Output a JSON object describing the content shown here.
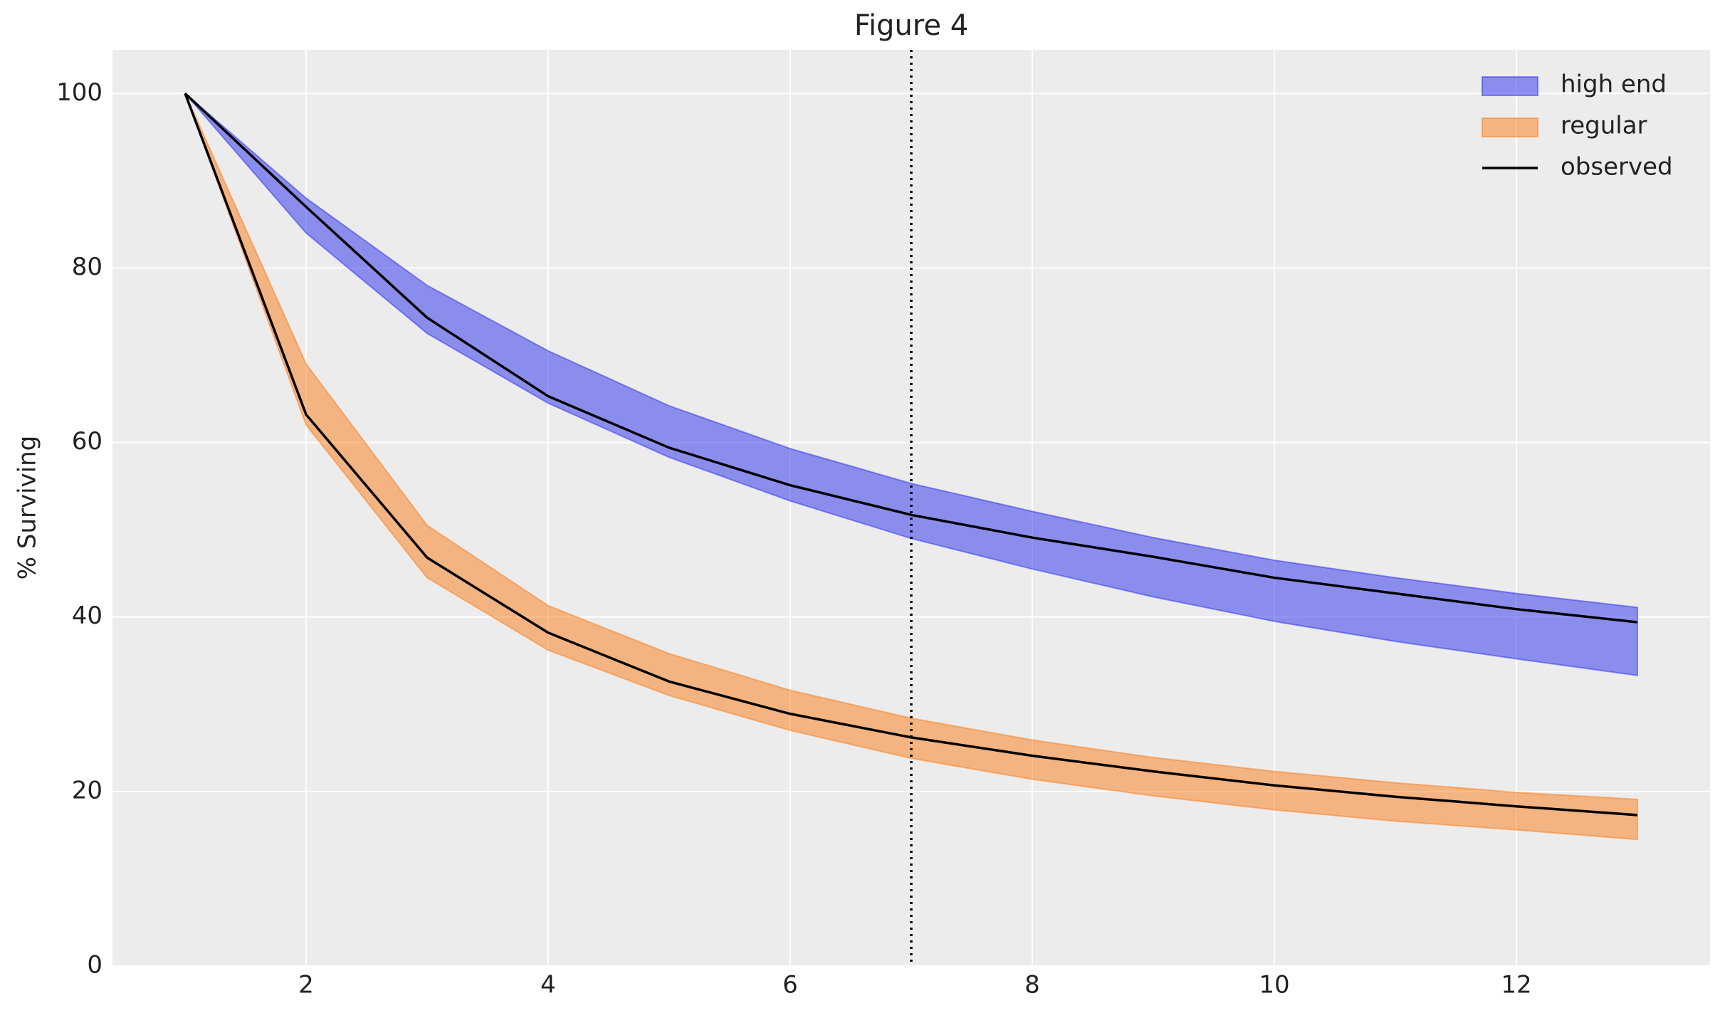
{
  "chart_data": {
    "type": "band",
    "title": "Figure 4",
    "y_label": "% Surviving",
    "x": [
      1,
      2,
      3,
      4,
      5,
      6,
      7,
      8,
      9,
      10,
      11,
      12,
      13
    ],
    "xlim": [
      0.4,
      13.6
    ],
    "ylim": [
      0,
      105
    ],
    "xticks": [
      2,
      4,
      6,
      8,
      10,
      12
    ],
    "yticks": [
      0,
      20,
      40,
      60,
      80,
      100
    ],
    "grid": true,
    "background": "#ececec",
    "alpha": 0.5,
    "vline": 7,
    "vline_color": "#000000",
    "legend": "upper right",
    "series": [
      {
        "name": "high end",
        "color": "#2a2eec",
        "upper": [
          100,
          88,
          78,
          70.5,
          64.2,
          59.3,
          55.3,
          52.1,
          49.1,
          46.5,
          44.5,
          42.7,
          41.1
        ],
        "lower": [
          100,
          84,
          72.5,
          64.5,
          58.3,
          53.3,
          49,
          45.5,
          42.3,
          39.5,
          37.2,
          35.2,
          33.3
        ],
        "observed": [
          100,
          87,
          74.3,
          65.3,
          59.4,
          55.1,
          51.7,
          49.1,
          46.9,
          44.5,
          42.7,
          40.9,
          39.4
        ]
      },
      {
        "name": "regular",
        "color": "#fa7c17",
        "upper": [
          100,
          69,
          50.5,
          41.3,
          35.8,
          31.6,
          28.4,
          25.9,
          23.9,
          22.3,
          21,
          19.9,
          19.1
        ],
        "lower": [
          100,
          62,
          44.5,
          36.2,
          31,
          27,
          23.8,
          21.4,
          19.5,
          17.9,
          16.6,
          15.6,
          14.5
        ],
        "observed": [
          100,
          63.2,
          46.8,
          38.2,
          32.6,
          28.9,
          26.2,
          24.1,
          22.3,
          20.7,
          19.4,
          18.3,
          17.3
        ]
      }
    ],
    "observed": {
      "name": "observed",
      "color": "#000000"
    }
  }
}
